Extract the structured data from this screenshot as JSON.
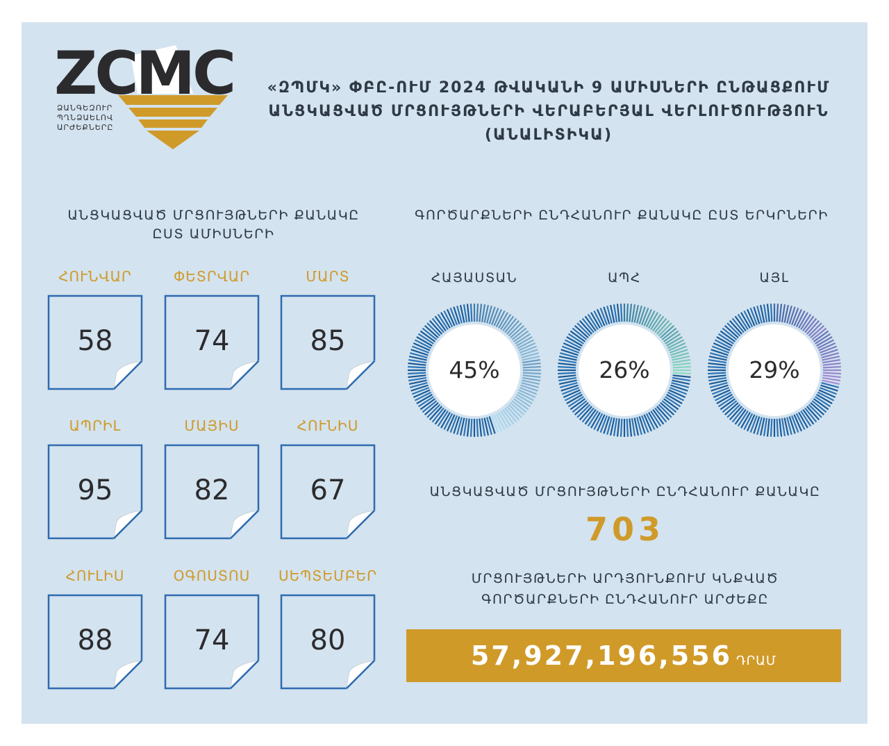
{
  "logo": {
    "text": "ZCMC",
    "subtitle": [
      "ՁԱՆԳԵԶՈՒՐ",
      "ՊՂՆՁԱԵԼՈՎ",
      "ԱՐԺԵՔՆԵՐԸ"
    ]
  },
  "title": {
    "line1": "«ԶՊՄԿ» ՓԲԸ-ՈՒՄ 2024 ԹՎԱԿԱՆԻ 9 ԱՄԻՍՆԵՐԻ ԸՆԹԱՑՔՈՒՄ",
    "line2": "ԱՆՑԿԱՑՎԱԾ ՄՐՑՈՒՅԹՆԵՐԻ ՎԵՐԱԲԵՐՅԱԼ ՎԵՐԼՈՒԾՈՒԹՅՈՒՆ",
    "line3": "(ԱՆԱԼԻՏԻԿԱ)"
  },
  "monthly": {
    "heading1": "ԱՆՑԿԱՑՎԱԾ ՄՐՑՈՒՅԹՆԵՐԻ ՔԱՆԱԿԸ",
    "heading2": "ԸՍՏ ԱՄԻՍՆԵՐԻ",
    "months": [
      {
        "label": "ՀՈՒՆՎԱՐ",
        "value": "58"
      },
      {
        "label": "ՓԵՏՐՎԱՐ",
        "value": "74"
      },
      {
        "label": "ՄԱՐՏ",
        "value": "85"
      },
      {
        "label": "ԱՊՐԻԼ",
        "value": "95"
      },
      {
        "label": "ՄԱՅԻՍ",
        "value": "82"
      },
      {
        "label": "ՀՈՒՆԻՍ",
        "value": "67"
      },
      {
        "label": "ՀՈՒԼԻՍ",
        "value": "88"
      },
      {
        "label": "ՕԳՈՍՏՈՍ",
        "value": "74"
      },
      {
        "label": "ՍԵՊՏԵՄԲԵՐ",
        "value": "80"
      }
    ]
  },
  "countries": {
    "heading": "ԳՈՐԾԱՐՔՆԵՐԻ ԸՆԴՀԱՆՈՒՐ ՔԱՆԱԿԸ ԸՍՏ ԵՐԿՐՆԵՐԻ",
    "items": [
      {
        "label": "ՀԱՅԱՍՏԱՆ",
        "pct": "45%",
        "value": 45,
        "accent": "#b5dff2"
      },
      {
        "label": "ԱՊՀ",
        "pct": "26%",
        "value": 26,
        "accent": "#8fdcc2"
      },
      {
        "label": "ԱՅԼ",
        "pct": "29%",
        "value": 29,
        "accent": "#a98ed6"
      }
    ]
  },
  "totals": {
    "count_label": "ԱՆՑԿԱՑՎԱԾ ՄՐՑՈՒՅԹՆԵՐԻ ԸՆԴՀԱՆՈՒՐ ՔԱՆԱԿԸ",
    "count_value": "703",
    "value_label1": "ՄՐՑՈՒՅԹՆԵՐԻ ԱՐԴՅՈՒՆՔՈՒՄ ԿՆՔՎԱԾ",
    "value_label2": "ԳՈՐԾԱՐՔՆԵՐԻ ԸՆԴՀԱՆՈՒՐ ԱՐԺԵՔԸ",
    "value_amount": "57,927,196,556",
    "value_currency": "ԴՐԱՄ"
  },
  "colors": {
    "panel": "#d3e3ef",
    "gold": "#d09a29",
    "card_border": "#2e6bb0",
    "ring_dark": "#1d5a93"
  }
}
